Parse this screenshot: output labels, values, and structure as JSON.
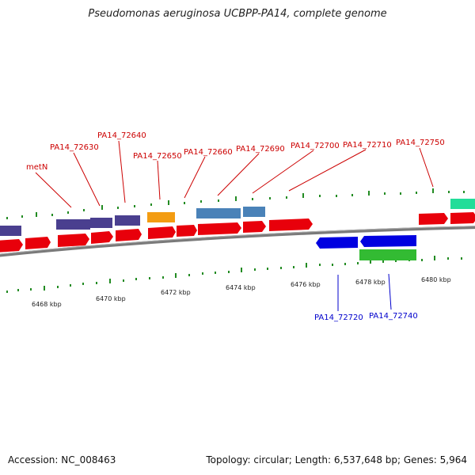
{
  "title": "Pseudomonas aeruginosa UCBPP-PA14, complete genome",
  "footer": {
    "accession": "Accession: NC_008463",
    "topology": "Topology: circular; Length: 6,537,648 bp; Genes: 5,964"
  },
  "colors": {
    "forward_cds": "#e8000b",
    "reverse_cds": "#0000e0",
    "purple": "#4a3f8f",
    "orange": "#f39c12",
    "steelblue": "#4a82b8",
    "green": "#33bb33",
    "teal": "#22dd99",
    "backbone": "#808080",
    "tick": "#228b22",
    "label_red": "#cc0000",
    "label_blue": "#0000cc"
  },
  "top_labels": [
    {
      "id": "metN",
      "text": "metN"
    },
    {
      "id": "PA14_72630",
      "text": "PA14_72630"
    },
    {
      "id": "PA14_72640",
      "text": "PA14_72640"
    },
    {
      "id": "PA14_72650",
      "text": "PA14_72650"
    },
    {
      "id": "PA14_72660",
      "text": "PA14_72660"
    },
    {
      "id": "PA14_72690",
      "text": "PA14_72690"
    },
    {
      "id": "PA14_72700",
      "text": "PA14_72700"
    },
    {
      "id": "PA14_72710",
      "text": "PA14_72710"
    },
    {
      "id": "PA14_72750",
      "text": "PA14_72750"
    }
  ],
  "bottom_labels": [
    {
      "id": "PA14_72720",
      "text": "PA14_72720"
    },
    {
      "id": "PA14_72740",
      "text": "PA14_72740"
    }
  ],
  "kbp_labels": [
    "6468 kbp",
    "6470 kbp",
    "6472 kbp",
    "6474 kbp",
    "6476 kbp",
    "6478 kbp",
    "6480 kbp"
  ]
}
